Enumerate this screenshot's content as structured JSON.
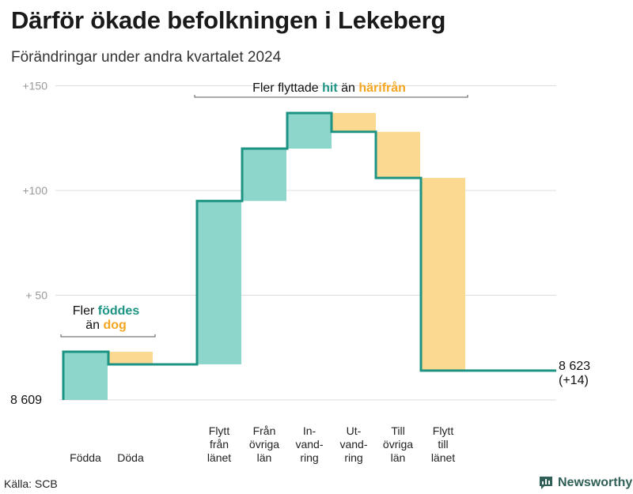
{
  "title": "Därför ökade befolkningen i Lekeberg",
  "subtitle": "Förändringar under andra kvartalet 2024",
  "source": "Källa: SCB",
  "brand": "Newsworthy",
  "chart_data": {
    "type": "waterfall",
    "base": 8609,
    "end_value_label": "8 623",
    "end_change_label": "(+14)",
    "y_ticks": [
      {
        "value": 0,
        "label": "8  609"
      },
      {
        "value": 50,
        "label": "+  50"
      },
      {
        "value": 100,
        "label": "+100"
      },
      {
        "value": 150,
        "label": "+150"
      }
    ],
    "ylim": [
      0,
      150
    ],
    "steps": [
      {
        "label": [
          "Födda"
        ],
        "change": 23,
        "kind": "increase"
      },
      {
        "label": [
          "Döda"
        ],
        "change": -6,
        "kind": "decrease"
      },
      {
        "label": [
          "Flytt",
          "från",
          "länet"
        ],
        "change": 78,
        "kind": "increase"
      },
      {
        "label": [
          "Från",
          "övriga",
          "län"
        ],
        "change": 25,
        "kind": "increase"
      },
      {
        "label": [
          "In-",
          "vand-",
          "ring"
        ],
        "change": 17,
        "kind": "increase"
      },
      {
        "label": [
          "Ut-",
          "vand-",
          "ring"
        ],
        "change": -9,
        "kind": "decrease"
      },
      {
        "label": [
          "Till",
          "övriga",
          "län"
        ],
        "change": -22,
        "kind": "decrease"
      },
      {
        "label": [
          "Flytt",
          "till",
          "länet"
        ],
        "change": -92,
        "kind": "decrease"
      }
    ],
    "annotations": [
      {
        "parts": [
          [
            "Fler flyttade ",
            "plain"
          ],
          [
            "hit",
            "green"
          ],
          [
            " än ",
            "plain"
          ],
          [
            "härifrån",
            "orange"
          ]
        ]
      },
      {
        "lines": [
          [
            [
              "Fler ",
              "plain"
            ],
            [
              "föddes",
              "green"
            ]
          ],
          [
            [
              "än ",
              "plain"
            ],
            [
              "dog",
              "orange"
            ]
          ]
        ]
      }
    ],
    "colors": {
      "increase": "#8cd6cb",
      "decrease": "#fbd990",
      "line": "#1d9483",
      "grid": "#dcdcdc",
      "bracket": "#555555"
    }
  }
}
